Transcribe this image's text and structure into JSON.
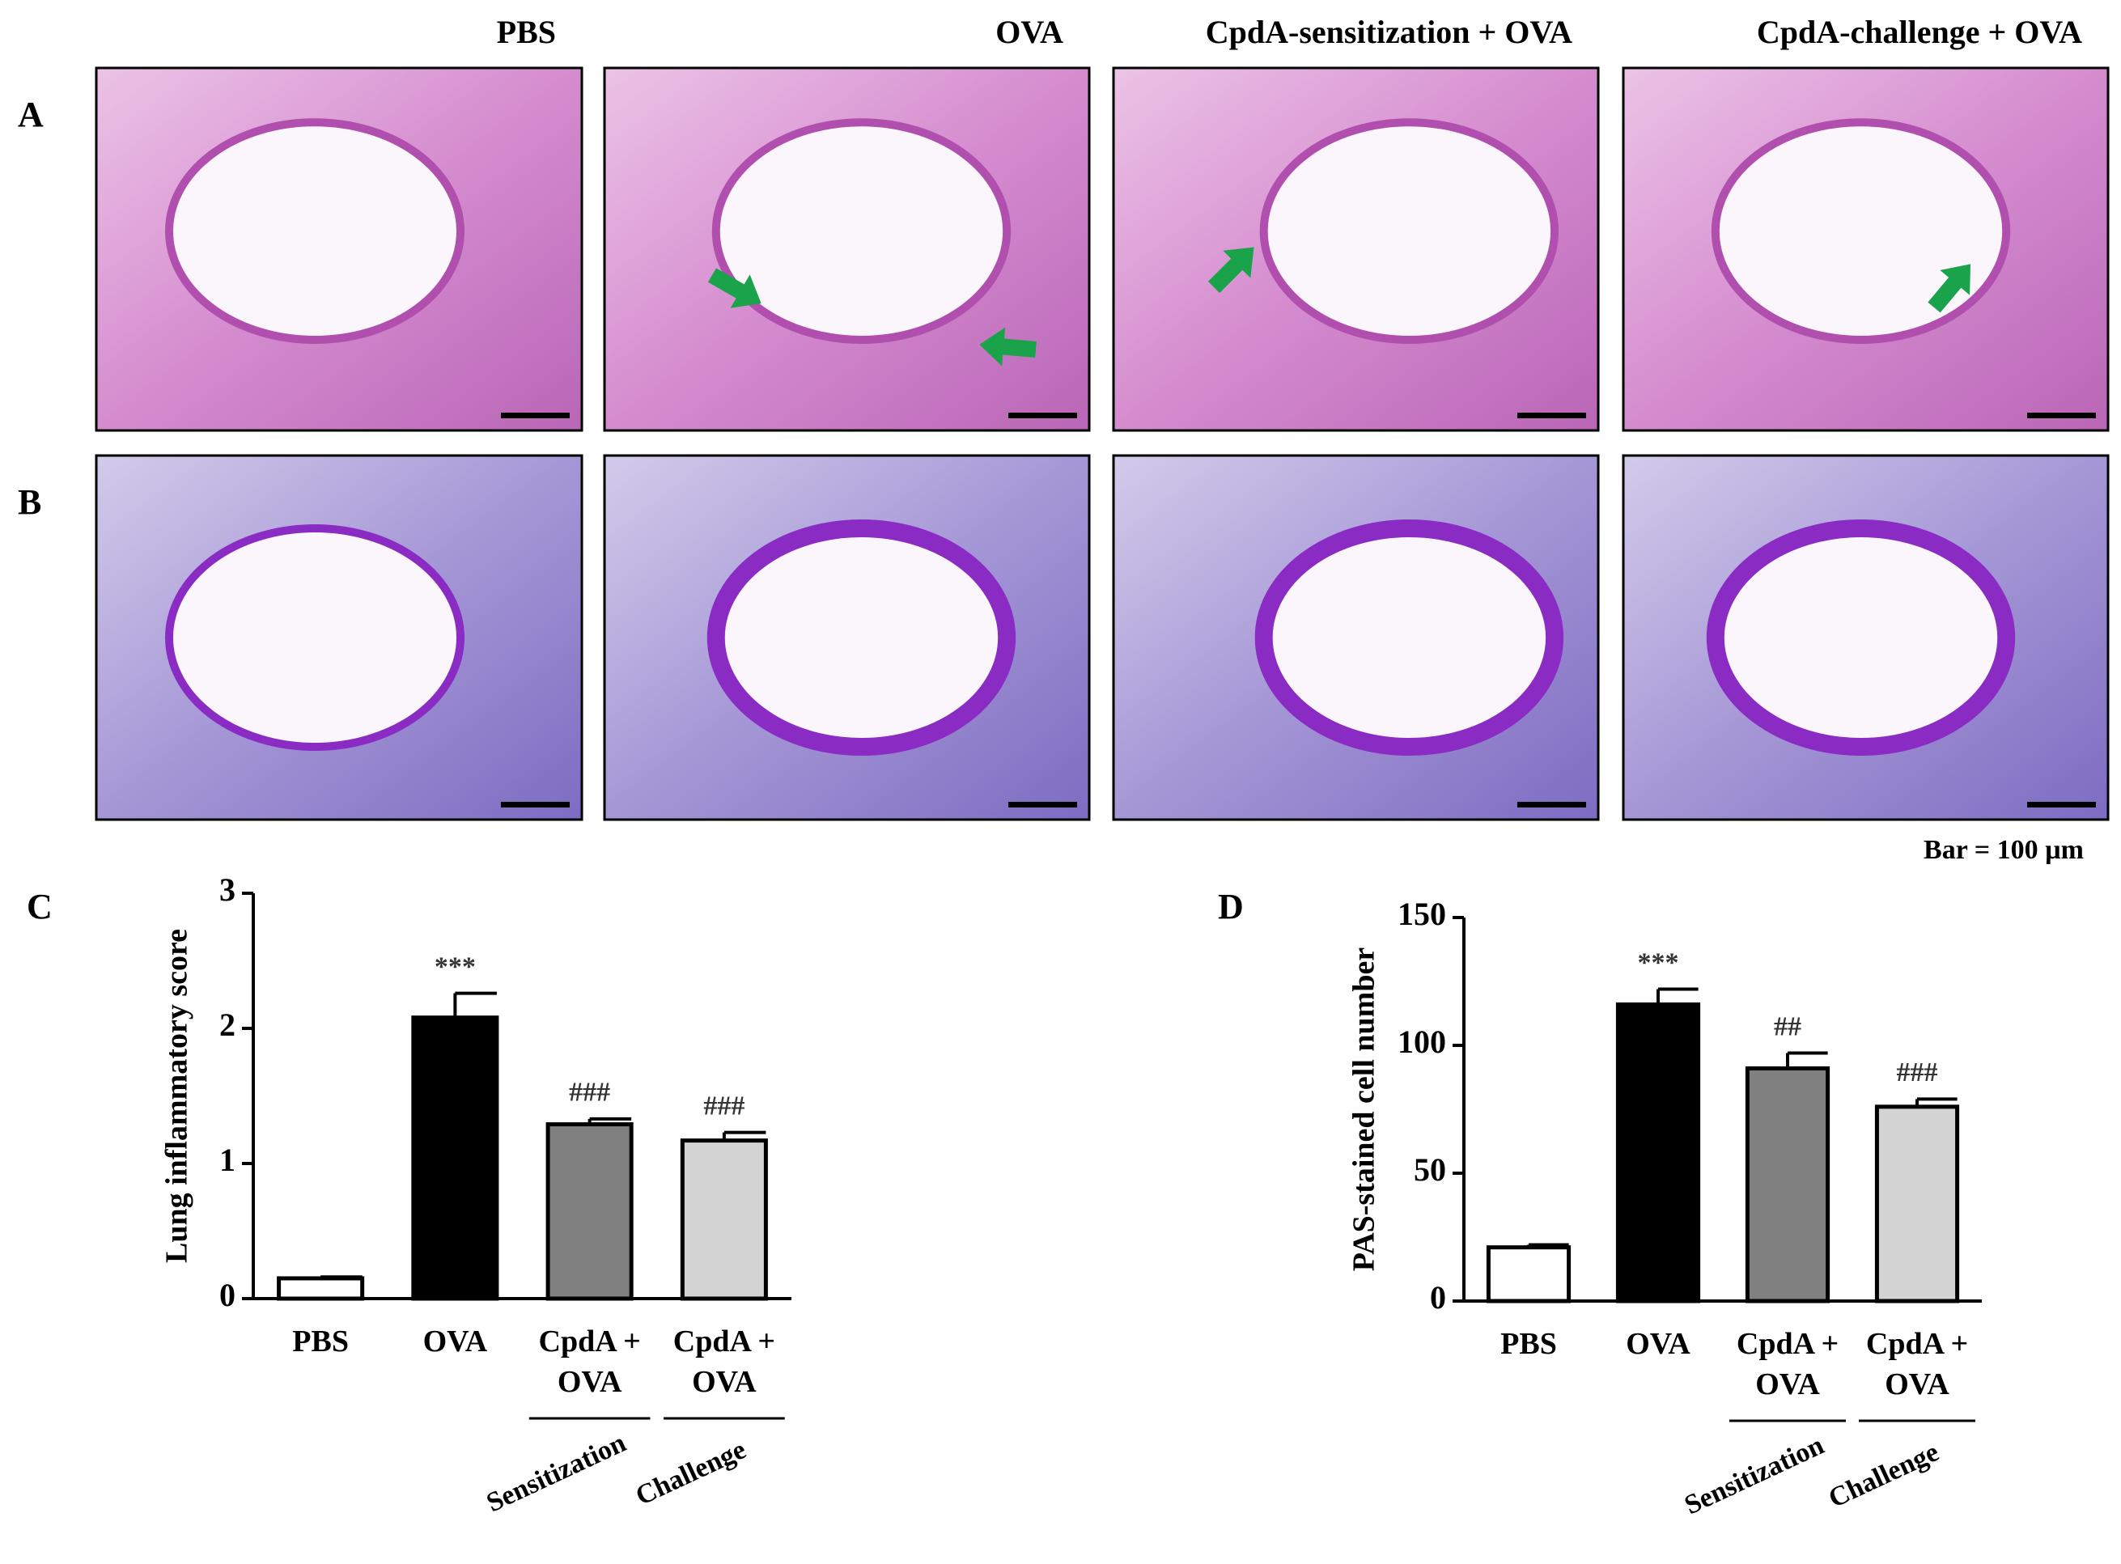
{
  "figure": {
    "column_titles": [
      "PBS",
      "OVA",
      "CpdA-sensitization + OVA",
      "CpdA-challenge + OVA"
    ],
    "row_labels": [
      "A",
      "B"
    ],
    "scale_note": "Bar = 100 µm"
  },
  "chart_data": [
    {
      "type": "bar",
      "panel": "C",
      "ylabel": "Lung inflammatory score",
      "categories": [
        "PBS",
        "OVA",
        "CpdA + OVA",
        "CpdA + OVA"
      ],
      "group_labels": [
        null,
        null,
        "Sensitization",
        "Challenge"
      ],
      "values": [
        0.15,
        2.08,
        1.29,
        1.17
      ],
      "errors": [
        0.01,
        0.18,
        0.04,
        0.06
      ],
      "annotations": [
        null,
        "***",
        "###",
        "###"
      ],
      "colors": [
        "#ffffff",
        "#000000",
        "#808080",
        "#d3d3d3"
      ],
      "ylim": [
        0,
        3
      ],
      "yticks": [
        0,
        1,
        2,
        3
      ]
    },
    {
      "type": "bar",
      "panel": "D",
      "ylabel": "PAS-stained cell number",
      "categories": [
        "PBS",
        "OVA",
        "CpdA + OVA",
        "CpdA + OVA"
      ],
      "group_labels": [
        null,
        null,
        "Sensitization",
        "Challenge"
      ],
      "values": [
        21,
        116,
        91,
        76
      ],
      "errors": [
        1,
        6,
        6,
        3
      ],
      "annotations": [
        null,
        "***",
        "##",
        "###"
      ],
      "colors": [
        "#ffffff",
        "#000000",
        "#808080",
        "#d3d3d3"
      ],
      "ylim": [
        0,
        150
      ],
      "yticks": [
        0,
        50,
        100,
        150
      ]
    }
  ]
}
